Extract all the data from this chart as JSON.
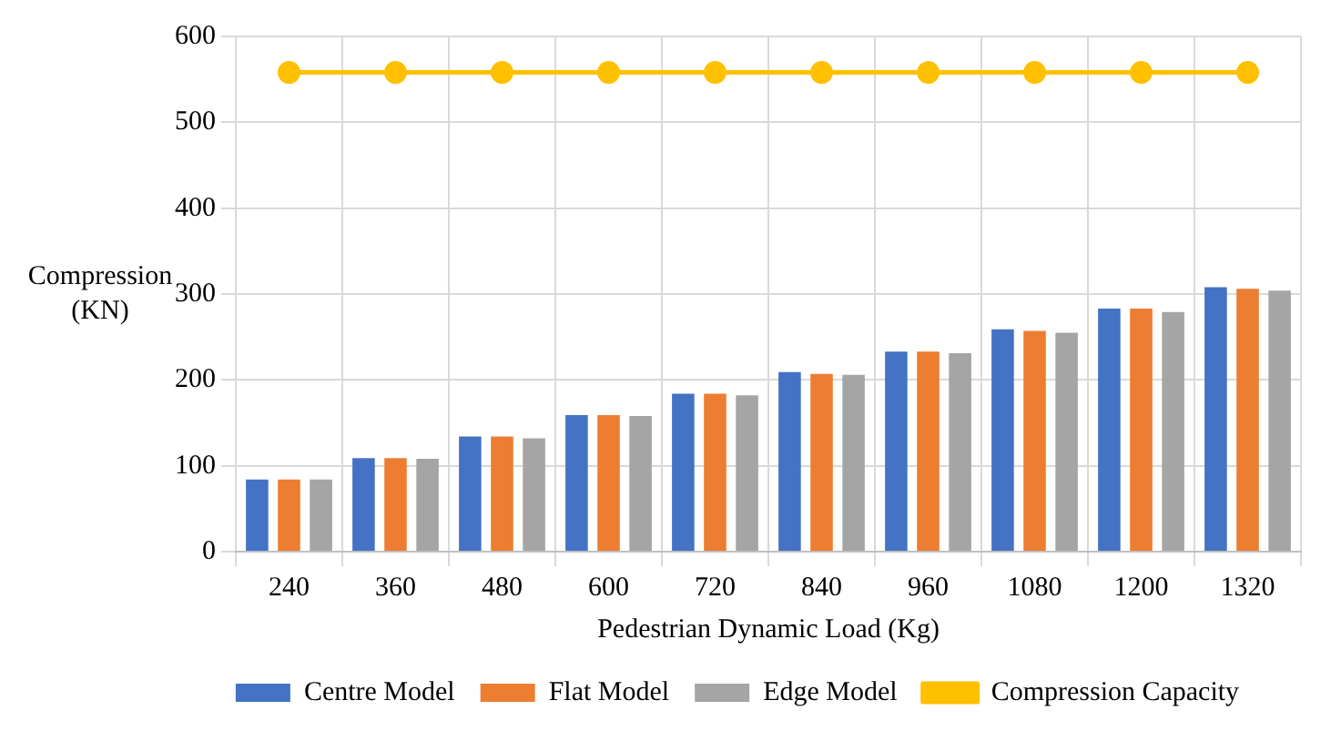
{
  "chart_data": {
    "type": "bar",
    "xlabel": "Pedestrian Dynamic Load (Kg)",
    "ylabel": "Compression\n(KN)",
    "categories": [
      "240",
      "360",
      "480",
      "600",
      "720",
      "840",
      "960",
      "1080",
      "1200",
      "1320"
    ],
    "series": [
      {
        "name": "Centre Model",
        "color": "#4472c4",
        "values": [
          84,
          109,
          134,
          159,
          184,
          209,
          233,
          259,
          283,
          308
        ]
      },
      {
        "name": "Flat Model",
        "color": "#ed7d31",
        "values": [
          84,
          109,
          134,
          159,
          184,
          207,
          233,
          257,
          283,
          306
        ]
      },
      {
        "name": "Edge Model",
        "color": "#a5a5a5",
        "values": [
          84,
          108,
          132,
          158,
          182,
          206,
          231,
          255,
          279,
          304
        ]
      },
      {
        "name": "Compression Capacity",
        "type": "line",
        "color": "#ffc000",
        "marker": "circle",
        "values": [
          558,
          558,
          558,
          558,
          558,
          558,
          558,
          558,
          558,
          558
        ]
      }
    ],
    "ylim": [
      0,
      600
    ],
    "yticks": [
      0,
      100,
      200,
      300,
      400,
      500,
      600
    ],
    "grid": true,
    "legend": "bottom"
  }
}
